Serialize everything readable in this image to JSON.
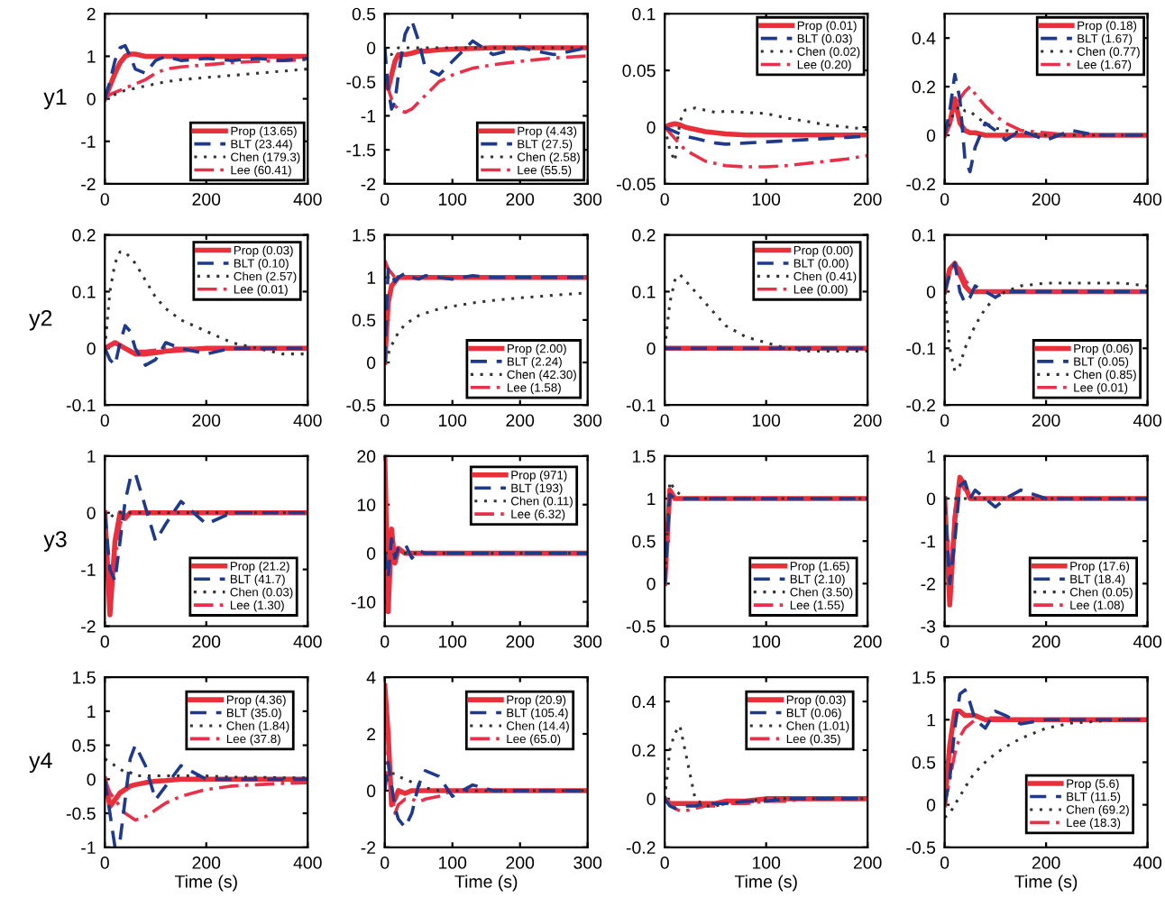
{
  "chart_data": [
    {
      "type": "line",
      "ylabel": "y1",
      "xlim": [
        0,
        400
      ],
      "ylim": [
        -2,
        2
      ],
      "xticks": [
        0,
        200,
        400
      ],
      "yticks": [
        -2,
        -1,
        0,
        1,
        2
      ],
      "legend": "bottom right",
      "x": [
        0,
        10,
        20,
        30,
        40,
        50,
        60,
        80,
        100,
        120,
        150,
        200,
        250,
        300,
        350,
        400
      ],
      "series": [
        {
          "name": "Prop (13.65)",
          "color": "#e8303a",
          "line_style": "solid",
          "values": [
            0,
            0.3,
            0.6,
            0.85,
            1.0,
            1.05,
            1.05,
            1.0,
            1.0,
            1.0,
            1.0,
            1.0,
            1.0,
            1.0,
            1.0,
            1.0
          ]
        },
        {
          "name": "BLT (23.44)",
          "color": "#1f3a8a",
          "line_style": "dashed",
          "values": [
            0,
            0.4,
            0.9,
            1.2,
            1.25,
            1.0,
            0.7,
            0.6,
            0.9,
            1.0,
            0.9,
            0.95,
            0.9,
            0.95,
            0.9,
            0.95
          ]
        },
        {
          "name": "Chen (179.3)",
          "color": "#333333",
          "line_style": "dotted",
          "values": [
            0,
            0.05,
            0.1,
            0.15,
            0.2,
            0.22,
            0.25,
            0.3,
            0.35,
            0.4,
            0.45,
            0.5,
            0.55,
            0.6,
            0.65,
            0.7
          ]
        },
        {
          "name": "Lee (60.41)",
          "color": "#e8304a",
          "line_style": "dashdot",
          "values": [
            0,
            0.1,
            0.15,
            0.2,
            0.25,
            0.3,
            0.35,
            0.45,
            0.6,
            0.7,
            0.75,
            0.8,
            0.85,
            0.88,
            0.9,
            0.92
          ]
        }
      ]
    },
    {
      "type": "line",
      "xlim": [
        0,
        300
      ],
      "ylim": [
        -2,
        0.5
      ],
      "xticks": [
        0,
        100,
        200,
        300
      ],
      "yticks": [
        -2,
        -1.5,
        -1,
        -0.5,
        0,
        0.5
      ],
      "legend": "bottom right",
      "x": [
        0,
        5,
        10,
        15,
        20,
        30,
        40,
        50,
        60,
        80,
        100,
        130,
        160,
        200,
        250,
        300
      ],
      "series": [
        {
          "name": "Prop (4.43)",
          "color": "#e8303a",
          "line_style": "solid",
          "values": [
            -0.5,
            -0.6,
            -0.4,
            -0.2,
            -0.1,
            -0.1,
            -0.08,
            -0.05,
            -0.05,
            -0.03,
            -0.02,
            -0.01,
            0,
            0,
            0,
            0
          ]
        },
        {
          "name": "BLT (27.5)",
          "color": "#1f3a8a",
          "line_style": "dashed",
          "values": [
            0,
            -0.6,
            -0.9,
            -0.8,
            -0.4,
            0.2,
            0.4,
            0.1,
            -0.3,
            -0.4,
            -0.2,
            0.1,
            -0.1,
            0,
            -0.1,
            0
          ]
        },
        {
          "name": "Chen (2.58)",
          "color": "#333333",
          "line_style": "dotted",
          "values": [
            0,
            -0.1,
            -0.1,
            -0.05,
            0,
            0,
            0,
            0,
            0,
            0,
            0,
            0,
            0,
            0,
            0,
            0
          ]
        },
        {
          "name": "Lee (55.5)",
          "color": "#e8304a",
          "line_style": "dashdot",
          "values": [
            -0.5,
            -0.6,
            -0.75,
            -0.85,
            -0.9,
            -0.95,
            -0.9,
            -0.8,
            -0.7,
            -0.5,
            -0.4,
            -0.3,
            -0.25,
            -0.2,
            -0.15,
            -0.12
          ]
        }
      ]
    },
    {
      "type": "line",
      "xlim": [
        0,
        200
      ],
      "ylim": [
        -0.05,
        0.1
      ],
      "xticks": [
        0,
        100,
        200
      ],
      "yticks": [
        -0.05,
        0,
        0.05,
        0.1
      ],
      "legend": "top right",
      "x": [
        0,
        5,
        10,
        15,
        20,
        30,
        40,
        50,
        60,
        80,
        100,
        120,
        140,
        160,
        180,
        200
      ],
      "series": [
        {
          "name": "Prop (0.01)",
          "color": "#e8303a",
          "line_style": "solid",
          "values": [
            0,
            0.002,
            0.003,
            0.002,
            0,
            -0.002,
            -0.004,
            -0.005,
            -0.006,
            -0.007,
            -0.007,
            -0.007,
            -0.007,
            -0.007,
            -0.007,
            -0.007
          ]
        },
        {
          "name": "BLT (0.03)",
          "color": "#1f3a8a",
          "line_style": "dashed",
          "values": [
            0,
            -0.002,
            -0.004,
            -0.006,
            -0.008,
            -0.01,
            -0.012,
            -0.014,
            -0.015,
            -0.014,
            -0.013,
            -0.012,
            -0.011,
            -0.01,
            -0.009,
            -0.008
          ]
        },
        {
          "name": "Chen (0.02)",
          "color": "#333333",
          "line_style": "dotted",
          "values": [
            0,
            -0.02,
            -0.03,
            0.005,
            0.015,
            0.017,
            0.015,
            0.013,
            0.014,
            0.013,
            0.012,
            0.008,
            0.005,
            0.002,
            0,
            -0.002
          ]
        },
        {
          "name": "Lee (0.20)",
          "color": "#e8304a",
          "line_style": "dashdot",
          "values": [
            0,
            -0.005,
            -0.01,
            -0.015,
            -0.02,
            -0.025,
            -0.03,
            -0.032,
            -0.034,
            -0.035,
            -0.035,
            -0.034,
            -0.032,
            -0.03,
            -0.028,
            -0.025
          ]
        }
      ]
    },
    {
      "type": "line",
      "xlim": [
        0,
        400
      ],
      "ylim": [
        -0.2,
        0.5
      ],
      "xticks": [
        0,
        200,
        400
      ],
      "yticks": [
        -0.2,
        0,
        0.2,
        0.4
      ],
      "legend": "top right",
      "x": [
        0,
        10,
        20,
        30,
        40,
        50,
        60,
        80,
        100,
        120,
        150,
        200,
        250,
        300,
        350,
        400
      ],
      "series": [
        {
          "name": "Prop (0.18)",
          "color": "#e8303a",
          "line_style": "solid",
          "values": [
            0,
            0.05,
            0.15,
            0.05,
            0.02,
            0.01,
            0.01,
            0,
            0,
            0,
            0,
            0,
            0,
            0,
            0,
            0
          ]
        },
        {
          "name": "BLT (1.67)",
          "color": "#1f3a8a",
          "line_style": "dashed",
          "values": [
            0,
            0.1,
            0.25,
            0.15,
            -0.1,
            -0.15,
            -0.05,
            0.05,
            0.02,
            -0.02,
            0.02,
            -0.02,
            0.02,
            0,
            0,
            0
          ]
        },
        {
          "name": "Chen (0.77)",
          "color": "#333333",
          "line_style": "dotted",
          "values": [
            0,
            0.05,
            0.1,
            0.12,
            0.1,
            0.1,
            0.08,
            0.05,
            0.03,
            0.02,
            0.01,
            0,
            0,
            0,
            0,
            0
          ]
        },
        {
          "name": "Lee (1.67)",
          "color": "#e8304a",
          "line_style": "dashdot",
          "values": [
            0,
            0.05,
            0.1,
            0.15,
            0.18,
            0.2,
            0.17,
            0.12,
            0.08,
            0.05,
            0.02,
            0.01,
            0,
            0,
            0,
            0
          ]
        }
      ]
    },
    {
      "type": "line",
      "ylabel": "y2",
      "xlim": [
        0,
        400
      ],
      "ylim": [
        -0.1,
        0.2
      ],
      "xticks": [
        0,
        200,
        400
      ],
      "yticks": [
        -0.1,
        0,
        0.1,
        0.2
      ],
      "legend": "top right",
      "x": [
        0,
        10,
        20,
        30,
        40,
        50,
        60,
        80,
        100,
        120,
        150,
        200,
        250,
        300,
        350,
        400
      ],
      "series": [
        {
          "name": "Prop (0.03)",
          "color": "#e8303a",
          "line_style": "solid",
          "values": [
            0,
            0.005,
            0.01,
            0.005,
            0,
            -0.005,
            -0.01,
            -0.01,
            -0.008,
            -0.005,
            -0.003,
            0,
            0,
            0,
            0,
            0
          ]
        },
        {
          "name": "BLT (0.10)",
          "color": "#1f3a8a",
          "line_style": "dashed",
          "values": [
            0,
            -0.02,
            -0.03,
            0.01,
            0.04,
            0.03,
            0,
            -0.03,
            -0.02,
            0.01,
            0,
            -0.01,
            0,
            0,
            0,
            0
          ]
        },
        {
          "name": "Chen (2.57)",
          "color": "#333333",
          "line_style": "dotted",
          "values": [
            0,
            0.1,
            0.15,
            0.17,
            0.17,
            0.16,
            0.15,
            0.12,
            0.09,
            0.07,
            0.05,
            0.03,
            0.01,
            0,
            -0.01,
            -0.01
          ]
        },
        {
          "name": "Lee (0.01)",
          "color": "#e8304a",
          "line_style": "dashdot",
          "values": [
            0,
            0.005,
            0.01,
            0.005,
            0,
            -0.005,
            -0.005,
            -0.005,
            -0.003,
            0,
            0,
            0,
            0,
            0,
            0,
            0
          ]
        }
      ]
    },
    {
      "type": "line",
      "xlim": [
        0,
        300
      ],
      "ylim": [
        -0.5,
        1.5
      ],
      "xticks": [
        0,
        100,
        200,
        300
      ],
      "yticks": [
        -0.5,
        0,
        0.5,
        1,
        1.5
      ],
      "legend": "bottom right",
      "x": [
        0,
        5,
        10,
        15,
        20,
        30,
        40,
        50,
        60,
        80,
        100,
        130,
        160,
        200,
        250,
        300
      ],
      "series": [
        {
          "name": "Prop (2.00)",
          "color": "#e8303a",
          "line_style": "solid",
          "values": [
            0,
            0.7,
            0.9,
            0.95,
            1.0,
            1.0,
            1.0,
            1.0,
            1.0,
            1.0,
            1.0,
            1.0,
            1.0,
            1.0,
            1.0,
            1.0
          ]
        },
        {
          "name": "BLT (2.24)",
          "color": "#1f3a8a",
          "line_style": "dashed",
          "values": [
            0,
            1.1,
            1.05,
            0.95,
            1.0,
            1.05,
            1.0,
            0.98,
            1.02,
            1.0,
            0.98,
            1.02,
            1.0,
            1.0,
            1.0,
            1.0
          ]
        },
        {
          "name": "Chen (42.30)",
          "color": "#333333",
          "line_style": "dotted",
          "values": [
            0,
            0.1,
            0.2,
            0.28,
            0.35,
            0.45,
            0.5,
            0.55,
            0.58,
            0.63,
            0.66,
            0.7,
            0.73,
            0.76,
            0.79,
            0.82
          ]
        },
        {
          "name": "Lee (1.58)",
          "color": "#e8304a",
          "line_style": "dashdot",
          "values": [
            1.2,
            1.1,
            1.05,
            1.0,
            1.0,
            1.0,
            1.0,
            1.0,
            1.0,
            1.0,
            1.0,
            1.0,
            1.0,
            1.0,
            1.0,
            1.0
          ]
        }
      ]
    },
    {
      "type": "line",
      "xlim": [
        0,
        200
      ],
      "ylim": [
        -0.1,
        0.2
      ],
      "xticks": [
        0,
        100,
        200
      ],
      "yticks": [
        -0.1,
        0,
        0.1,
        0.2
      ],
      "legend": "top right",
      "x": [
        0,
        5,
        10,
        15,
        20,
        30,
        40,
        50,
        60,
        80,
        100,
        120,
        140,
        160,
        180,
        200
      ],
      "series": [
        {
          "name": "Prop (0.00)",
          "color": "#e8303a",
          "line_style": "solid",
          "values": [
            0,
            0,
            0,
            0,
            0,
            0,
            0,
            0,
            0,
            0,
            0,
            0,
            0,
            0,
            0,
            0
          ]
        },
        {
          "name": "BLT (0.00)",
          "color": "#1f3a8a",
          "line_style": "dashed",
          "values": [
            0,
            0,
            0,
            0,
            0,
            0,
            0,
            0,
            0,
            0,
            0,
            0,
            0,
            0,
            0,
            0
          ]
        },
        {
          "name": "Chen (0.41)",
          "color": "#333333",
          "line_style": "dotted",
          "values": [
            0,
            0.08,
            0.12,
            0.13,
            0.12,
            0.1,
            0.08,
            0.06,
            0.04,
            0.02,
            0.01,
            0,
            -0.005,
            -0.005,
            -0.005,
            -0.005
          ]
        },
        {
          "name": "Lee (0.00)",
          "color": "#e8304a",
          "line_style": "dashdot",
          "values": [
            0,
            0,
            0,
            0,
            0,
            0,
            0,
            0,
            0,
            0,
            0,
            0,
            0,
            0,
            0,
            0
          ]
        }
      ]
    },
    {
      "type": "line",
      "xlim": [
        0,
        400
      ],
      "ylim": [
        -0.2,
        0.1
      ],
      "xticks": [
        0,
        200,
        400
      ],
      "yticks": [
        -0.2,
        -0.1,
        0,
        0.1
      ],
      "legend": "bottom right",
      "x": [
        0,
        10,
        20,
        30,
        40,
        50,
        60,
        80,
        100,
        120,
        150,
        200,
        250,
        300,
        350,
        400
      ],
      "series": [
        {
          "name": "Prop (0.06)",
          "color": "#e8303a",
          "line_style": "solid",
          "values": [
            0,
            0.04,
            0.05,
            0.03,
            0.01,
            0,
            0,
            0,
            0,
            0,
            0,
            0,
            0,
            0,
            0,
            0
          ]
        },
        {
          "name": "BLT (0.05)",
          "color": "#1f3a8a",
          "line_style": "dashed",
          "values": [
            0,
            0.03,
            0.05,
            0,
            -0.02,
            -0.01,
            0.01,
            0,
            -0.01,
            0,
            0,
            0,
            0,
            0,
            0,
            0
          ]
        },
        {
          "name": "Chen (0.85)",
          "color": "#333333",
          "line_style": "dotted",
          "values": [
            0,
            -0.1,
            -0.14,
            -0.13,
            -0.1,
            -0.08,
            -0.06,
            -0.03,
            -0.01,
            0,
            0.01,
            0.015,
            0.015,
            0.015,
            0.015,
            0.01
          ]
        },
        {
          "name": "Lee (0.01)",
          "color": "#e8304a",
          "line_style": "dashdot",
          "values": [
            0,
            0.04,
            0.05,
            0.04,
            0.02,
            0.01,
            0,
            0,
            0,
            0,
            0,
            0,
            0,
            0,
            0,
            0
          ]
        }
      ]
    },
    {
      "type": "line",
      "ylabel": "y3",
      "xlim": [
        0,
        400
      ],
      "ylim": [
        -2,
        1
      ],
      "xticks": [
        0,
        200,
        400
      ],
      "yticks": [
        -2,
        -1,
        0,
        1
      ],
      "legend": "bottom right",
      "x": [
        0,
        10,
        20,
        30,
        40,
        50,
        60,
        80,
        100,
        120,
        150,
        200,
        250,
        300,
        350,
        400
      ],
      "series": [
        {
          "name": "Prop (21.2)",
          "color": "#e8303a",
          "line_style": "solid",
          "values": [
            0,
            -1.8,
            -0.5,
            0,
            -0.1,
            0,
            0,
            0,
            0,
            0,
            0,
            0,
            0,
            0,
            0,
            0
          ]
        },
        {
          "name": "BLT (41.7)",
          "color": "#1f3a8a",
          "line_style": "dashed",
          "values": [
            0,
            -1.0,
            -1.2,
            -0.5,
            0.2,
            0.6,
            0.7,
            0.1,
            -0.5,
            -0.2,
            0.2,
            -0.2,
            0,
            0,
            0,
            0
          ]
        },
        {
          "name": "Chen (0.03)",
          "color": "#333333",
          "line_style": "dotted",
          "values": [
            0,
            -0.1,
            0,
            0,
            0,
            0,
            0,
            0,
            0,
            0,
            0,
            0,
            0,
            0,
            0,
            0
          ]
        },
        {
          "name": "Lee (1.30)",
          "color": "#e8304a",
          "line_style": "dashdot",
          "values": [
            0,
            -1.5,
            -0.8,
            -0.2,
            0,
            0,
            0,
            0,
            0,
            0,
            0,
            0,
            0,
            0,
            0,
            0
          ]
        }
      ]
    },
    {
      "type": "line",
      "xlim": [
        0,
        300
      ],
      "ylim": [
        -15,
        20
      ],
      "xticks": [
        0,
        100,
        200,
        300
      ],
      "yticks": [
        -10,
        0,
        10,
        20
      ],
      "legend": "top right",
      "x": [
        0,
        5,
        10,
        15,
        20,
        30,
        40,
        50,
        60,
        80,
        100,
        130,
        160,
        200,
        250,
        300
      ],
      "series": [
        {
          "name": "Prop (971)",
          "color": "#e8303a",
          "line_style": "solid",
          "values": [
            20,
            -12,
            5,
            -2,
            1,
            0,
            0,
            0,
            0,
            0,
            0,
            0,
            0,
            0,
            0,
            0
          ]
        },
        {
          "name": "BLT (193)",
          "color": "#1f3a8a",
          "line_style": "dashed",
          "values": [
            0,
            -5,
            3,
            -1,
            1,
            2,
            -1,
            0.5,
            0,
            0,
            0,
            0,
            0,
            0,
            0,
            0
          ]
        },
        {
          "name": "Chen (0.11)",
          "color": "#333333",
          "line_style": "dotted",
          "values": [
            0,
            0,
            0,
            0,
            0,
            0,
            0,
            0,
            0,
            0,
            0,
            0,
            0,
            0,
            0,
            0
          ]
        },
        {
          "name": "Lee (6.32)",
          "color": "#e8304a",
          "line_style": "dashdot",
          "values": [
            0,
            -10,
            2,
            -1,
            0.5,
            0,
            0,
            0,
            0,
            0,
            0,
            0,
            0,
            0,
            0,
            0
          ]
        }
      ]
    },
    {
      "type": "line",
      "xlim": [
        0,
        200
      ],
      "ylim": [
        -0.5,
        1.5
      ],
      "xticks": [
        0,
        100,
        200
      ],
      "yticks": [
        -0.5,
        0,
        0.5,
        1,
        1.5
      ],
      "legend": "bottom right",
      "x": [
        0,
        5,
        10,
        15,
        20,
        30,
        40,
        50,
        60,
        80,
        100,
        120,
        140,
        160,
        180,
        200
      ],
      "series": [
        {
          "name": "Prop (1.65)",
          "color": "#e8303a",
          "line_style": "solid",
          "values": [
            0,
            1.1,
            1.0,
            1.0,
            1.0,
            1.0,
            1.0,
            1.0,
            1.0,
            1.0,
            1.0,
            1.0,
            1.0,
            1.0,
            1.0,
            1.0
          ]
        },
        {
          "name": "BLT (2.10)",
          "color": "#1f3a8a",
          "line_style": "dashed",
          "values": [
            0,
            1.05,
            1.0,
            1.0,
            1.0,
            1.0,
            1.0,
            1.0,
            1.0,
            1.0,
            1.0,
            1.0,
            1.0,
            1.0,
            1.0,
            1.0
          ]
        },
        {
          "name": "Chen (3.50)",
          "color": "#333333",
          "line_style": "dotted",
          "values": [
            0,
            1.2,
            1.1,
            1.05,
            1.0,
            1.0,
            1.0,
            1.0,
            1.0,
            1.0,
            1.0,
            1.0,
            1.0,
            1.0,
            1.0,
            1.0
          ]
        },
        {
          "name": "Lee (1.55)",
          "color": "#e8304a",
          "line_style": "dashdot",
          "values": [
            0,
            1.1,
            1.0,
            1.0,
            1.0,
            1.0,
            1.0,
            1.0,
            1.0,
            1.0,
            1.0,
            1.0,
            1.0,
            1.0,
            1.0,
            1.0
          ]
        }
      ]
    },
    {
      "type": "line",
      "xlim": [
        0,
        400
      ],
      "ylim": [
        -3,
        1
      ],
      "xticks": [
        0,
        200,
        400
      ],
      "yticks": [
        -3,
        -2,
        -1,
        0,
        1
      ],
      "legend": "bottom right",
      "x": [
        0,
        10,
        20,
        30,
        40,
        50,
        60,
        80,
        100,
        120,
        150,
        200,
        250,
        300,
        350,
        400
      ],
      "series": [
        {
          "name": "Prop (17.6)",
          "color": "#e8303a",
          "line_style": "solid",
          "values": [
            0,
            -2.5,
            -0.5,
            0.5,
            0.3,
            0,
            0,
            0,
            0,
            0,
            0,
            0,
            0,
            0,
            0,
            0
          ]
        },
        {
          "name": "BLT (18.4)",
          "color": "#1f3a8a",
          "line_style": "dashed",
          "values": [
            0,
            -2,
            -1,
            0.3,
            0.4,
            0,
            0.2,
            0,
            -0.2,
            0,
            0.2,
            0,
            0,
            0,
            0,
            0
          ]
        },
        {
          "name": "Chen (0.05)",
          "color": "#333333",
          "line_style": "dotted",
          "values": [
            0,
            0,
            0,
            0,
            0,
            0,
            0,
            0,
            0,
            0,
            0,
            0,
            0,
            0,
            0,
            0
          ]
        },
        {
          "name": "Lee (1.08)",
          "color": "#e8304a",
          "line_style": "dashdot",
          "values": [
            0,
            -2,
            -0.3,
            0.4,
            0.2,
            0,
            0,
            0,
            0,
            0,
            0,
            0,
            0,
            0,
            0,
            0
          ]
        }
      ]
    },
    {
      "type": "line",
      "ylabel": "y4",
      "xlabel": "Time (s)",
      "xlim": [
        0,
        400
      ],
      "ylim": [
        -1,
        1.5
      ],
      "xticks": [
        0,
        200,
        400
      ],
      "yticks": [
        -1,
        -0.5,
        0,
        0.5,
        1,
        1.5
      ],
      "legend": "top right",
      "x": [
        0,
        10,
        20,
        30,
        40,
        50,
        60,
        80,
        100,
        120,
        150,
        200,
        250,
        300,
        350,
        400
      ],
      "series": [
        {
          "name": "Prop (4.36)",
          "color": "#e8303a",
          "line_style": "solid",
          "values": [
            0,
            -0.4,
            -0.3,
            -0.2,
            -0.15,
            -0.1,
            -0.08,
            -0.05,
            -0.03,
            -0.02,
            0,
            0,
            0,
            0,
            0,
            0
          ]
        },
        {
          "name": "BLT (35.0)",
          "color": "#1f3a8a",
          "line_style": "dashed",
          "values": [
            0,
            -0.5,
            -1.0,
            -0.9,
            -0.3,
            0.3,
            0.5,
            0.2,
            -0.3,
            -0.1,
            0.2,
            0,
            0,
            0,
            0,
            0
          ]
        },
        {
          "name": "Chen (1.84)",
          "color": "#333333",
          "line_style": "dotted",
          "values": [
            0.3,
            0.25,
            0.2,
            0.15,
            0.1,
            0.1,
            0.05,
            0.05,
            0.05,
            0.05,
            0.05,
            0.05,
            0.03,
            0.03,
            0.02,
            0.02
          ]
        },
        {
          "name": "Lee (37.8)",
          "color": "#e8304a",
          "line_style": "dashdot",
          "values": [
            0,
            -0.2,
            -0.3,
            -0.4,
            -0.5,
            -0.55,
            -0.6,
            -0.55,
            -0.45,
            -0.35,
            -0.25,
            -0.15,
            -0.1,
            -0.08,
            -0.06,
            -0.05
          ]
        }
      ]
    },
    {
      "type": "line",
      "xlabel": "Time (s)",
      "xlim": [
        0,
        300
      ],
      "ylim": [
        -2,
        4
      ],
      "xticks": [
        0,
        100,
        200,
        300
      ],
      "yticks": [
        -2,
        0,
        2,
        4
      ],
      "legend": "top right",
      "x": [
        0,
        5,
        10,
        15,
        20,
        30,
        40,
        50,
        60,
        80,
        100,
        130,
        160,
        200,
        250,
        300
      ],
      "series": [
        {
          "name": "Prop (20.9)",
          "color": "#e8303a",
          "line_style": "solid",
          "values": [
            3.7,
            2.0,
            -0.5,
            -0.3,
            0,
            -0.1,
            0,
            0,
            0,
            0,
            0,
            0,
            0,
            0,
            0,
            0
          ]
        },
        {
          "name": "BLT (105.4)",
          "color": "#1f3a8a",
          "line_style": "dashed",
          "values": [
            0,
            1.0,
            0.2,
            -0.6,
            -1.0,
            -1.3,
            -0.8,
            0.2,
            0.7,
            0.5,
            -0.2,
            0.2,
            0,
            0,
            0,
            0
          ]
        },
        {
          "name": "Chen (14.4)",
          "color": "#333333",
          "line_style": "dotted",
          "values": [
            0,
            0.5,
            0.6,
            0.6,
            0.5,
            0.4,
            0.3,
            0.2,
            0.1,
            0,
            0,
            0,
            0,
            0,
            0,
            0
          ]
        },
        {
          "name": "Lee (65.0)",
          "color": "#e8304a",
          "line_style": "dashdot",
          "values": [
            0,
            1.5,
            0,
            -0.8,
            -0.5,
            -0.3,
            -0.3,
            -0.4,
            -0.3,
            -0.2,
            0,
            0,
            0,
            0,
            0,
            0
          ]
        }
      ]
    },
    {
      "type": "line",
      "xlabel": "Time (s)",
      "xlim": [
        0,
        200
      ],
      "ylim": [
        -0.2,
        0.5
      ],
      "xticks": [
        0,
        100,
        200
      ],
      "yticks": [
        -0.2,
        0,
        0.2,
        0.4
      ],
      "legend": "top right",
      "x": [
        0,
        5,
        10,
        15,
        20,
        30,
        40,
        50,
        60,
        80,
        100,
        120,
        140,
        160,
        180,
        200
      ],
      "series": [
        {
          "name": "Prop (0.03)",
          "color": "#e8303a",
          "line_style": "solid",
          "values": [
            0,
            -0.02,
            -0.02,
            -0.02,
            -0.02,
            -0.02,
            -0.02,
            -0.02,
            -0.01,
            -0.01,
            0,
            0,
            0,
            0,
            0,
            0
          ]
        },
        {
          "name": "BLT (0.06)",
          "color": "#1f3a8a",
          "line_style": "dashed",
          "values": [
            0,
            -0.03,
            -0.04,
            -0.03,
            -0.03,
            -0.03,
            -0.02,
            -0.02,
            -0.02,
            -0.01,
            -0.01,
            0,
            0,
            0,
            0,
            0
          ]
        },
        {
          "name": "Chen (1.01)",
          "color": "#333333",
          "line_style": "dotted",
          "values": [
            0,
            0.2,
            0.27,
            0.3,
            0.2,
            0,
            -0.03,
            -0.03,
            -0.02,
            -0.01,
            0,
            0,
            0,
            0,
            0,
            0
          ]
        },
        {
          "name": "Lee (0.35)",
          "color": "#e8304a",
          "line_style": "dashdot",
          "values": [
            0,
            -0.02,
            -0.04,
            -0.05,
            -0.05,
            -0.04,
            -0.03,
            -0.03,
            -0.02,
            -0.02,
            -0.01,
            -0.01,
            0,
            0,
            0,
            0
          ]
        }
      ]
    },
    {
      "type": "line",
      "xlabel": "Time (s)",
      "xlim": [
        0,
        400
      ],
      "ylim": [
        -0.5,
        1.5
      ],
      "xticks": [
        0,
        200,
        400
      ],
      "yticks": [
        -0.5,
        0,
        0.5,
        1,
        1.5
      ],
      "legend": "bottom right",
      "x": [
        0,
        10,
        20,
        30,
        40,
        50,
        60,
        80,
        100,
        120,
        150,
        200,
        250,
        300,
        350,
        400
      ],
      "series": [
        {
          "name": "Prop (5.6)",
          "color": "#e8303a",
          "line_style": "solid",
          "values": [
            0,
            0.7,
            1.1,
            1.1,
            1.05,
            1.05,
            1.05,
            1.0,
            1.0,
            1.0,
            1.0,
            1.0,
            1.0,
            1.0,
            1.0,
            1.0
          ]
        },
        {
          "name": "BLT (11.5)",
          "color": "#1f3a8a",
          "line_style": "dashed",
          "values": [
            0,
            0.3,
            0.9,
            1.3,
            1.35,
            1.2,
            1.0,
            0.9,
            1.1,
            1.05,
            0.95,
            1.0,
            1.0,
            1.0,
            1.0,
            1.0
          ]
        },
        {
          "name": "Chen (69.2)",
          "color": "#333333",
          "line_style": "dotted",
          "values": [
            -0.15,
            -0.1,
            0,
            0.1,
            0.2,
            0.3,
            0.38,
            0.5,
            0.6,
            0.68,
            0.78,
            0.9,
            0.96,
            0.98,
            1.0,
            1.0
          ]
        },
        {
          "name": "Lee (18.3)",
          "color": "#e8304a",
          "line_style": "dashdot",
          "values": [
            0,
            0.3,
            0.6,
            0.8,
            0.9,
            0.95,
            1.0,
            1.02,
            1.02,
            1.02,
            1.0,
            1.0,
            1.0,
            1.0,
            1.0,
            1.0
          ]
        }
      ]
    }
  ]
}
